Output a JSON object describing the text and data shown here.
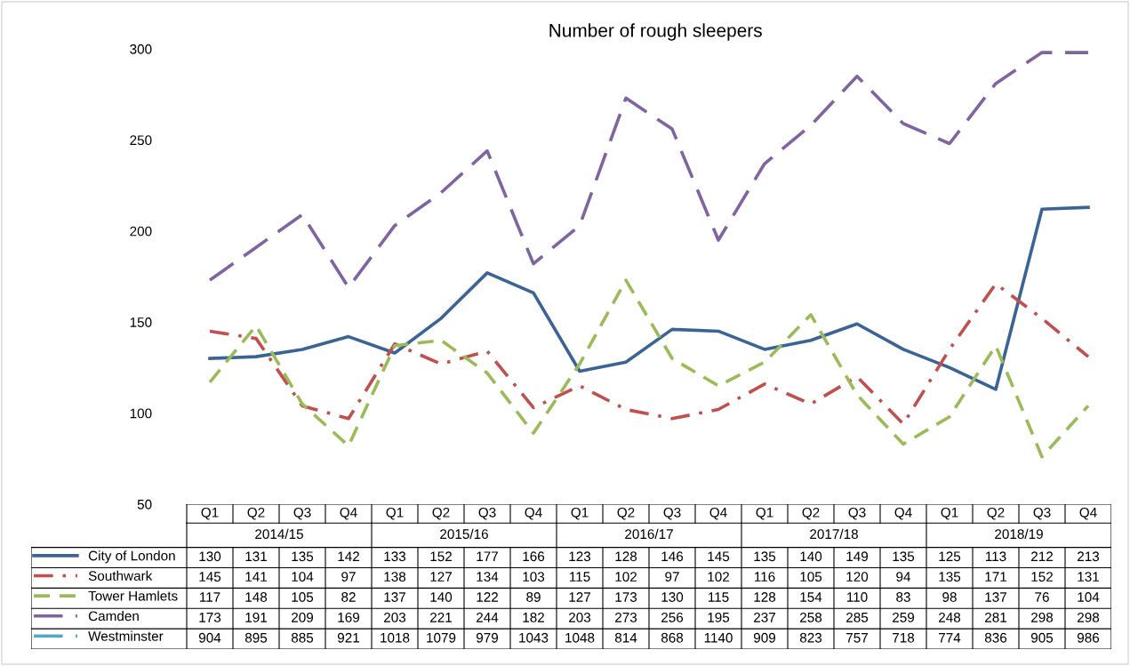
{
  "chart_data": {
    "type": "line",
    "title": "Number of rough sleepers",
    "categories": [
      "Q1",
      "Q2",
      "Q3",
      "Q4",
      "Q1",
      "Q2",
      "Q3",
      "Q4",
      "Q1",
      "Q2",
      "Q3",
      "Q4",
      "Q1",
      "Q2",
      "Q3",
      "Q4",
      "Q1",
      "Q2",
      "Q3",
      "Q4"
    ],
    "annotations": [
      "2014/15",
      "2015/16",
      "2016/17",
      "2017/18",
      "2018/19"
    ],
    "ylim": [
      50,
      300
    ],
    "yticks": [
      50,
      100,
      150,
      200,
      250,
      300
    ],
    "grid": false,
    "legend": "bottom left",
    "data_labels": true,
    "marker": "none",
    "series": [
      {
        "name": "City of London",
        "color": "#3a6396",
        "line_style": "solid",
        "values": [
          130,
          131,
          135,
          142,
          133,
          152,
          177,
          166,
          123,
          128,
          146,
          145,
          135,
          140,
          149,
          135,
          125,
          113,
          212,
          213
        ]
      },
      {
        "name": "Southwark",
        "color": "#c0504d",
        "line_style": "dashdot",
        "values": [
          145,
          141,
          104,
          97,
          138,
          127,
          134,
          103,
          115,
          102,
          97,
          102,
          116,
          105,
          120,
          94,
          135,
          171,
          152,
          131
        ]
      },
      {
        "name": "Tower Hamlets",
        "color": "#9bbb59",
        "line_style": "dashed",
        "values": [
          117,
          148,
          105,
          82,
          137,
          140,
          122,
          89,
          127,
          173,
          130,
          115,
          128,
          154,
          110,
          83,
          98,
          137,
          76,
          104
        ]
      },
      {
        "name": "Camden",
        "color": "#8064a2",
        "line_style": "longdash",
        "values": [
          173,
          191,
          209,
          169,
          203,
          221,
          244,
          182,
          203,
          273,
          256,
          195,
          237,
          258,
          285,
          259,
          248,
          281,
          298,
          298
        ]
      },
      {
        "name": "Westminster",
        "color": "#4bacc6",
        "line_style": "longdash",
        "values": [
          null,
          null,
          null,
          null,
          null,
          null,
          null,
          null,
          null,
          null,
          null,
          null,
          null,
          null,
          null,
          null,
          null,
          null,
          null,
          null
        ],
        "value_labels": [
          "904",
          "895",
          "885",
          "921",
          "1018",
          "1079",
          "979",
          "1043",
          "1048",
          "814",
          "868",
          "1140",
          "909",
          "823",
          "757",
          "718",
          "774",
          "836",
          "905",
          "986"
        ]
      }
    ]
  }
}
